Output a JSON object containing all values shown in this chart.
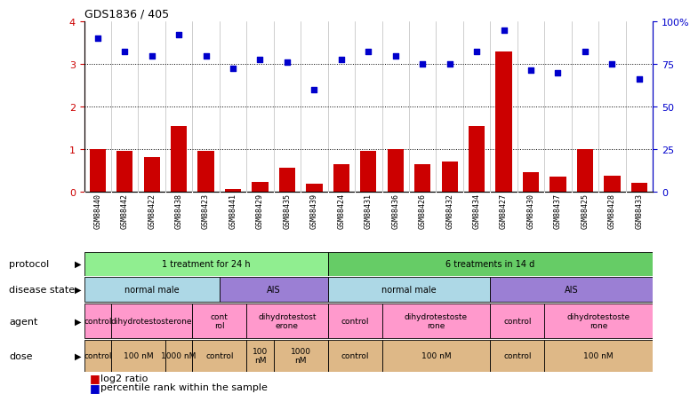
{
  "title": "GDS1836 / 405",
  "samples": [
    "GSM88440",
    "GSM88442",
    "GSM88422",
    "GSM88438",
    "GSM88423",
    "GSM88441",
    "GSM88429",
    "GSM88435",
    "GSM88439",
    "GSM88424",
    "GSM88431",
    "GSM88436",
    "GSM88426",
    "GSM88432",
    "GSM88434",
    "GSM88427",
    "GSM88430",
    "GSM88437",
    "GSM88425",
    "GSM88428",
    "GSM88433"
  ],
  "log2_ratio": [
    1.0,
    0.95,
    0.8,
    1.55,
    0.95,
    0.05,
    0.22,
    0.55,
    0.18,
    0.65,
    0.95,
    1.0,
    0.65,
    0.7,
    1.55,
    3.3,
    0.45,
    0.35,
    1.0,
    0.38,
    0.2
  ],
  "percentile": [
    3.6,
    3.3,
    3.2,
    3.7,
    3.2,
    2.9,
    3.1,
    3.05,
    2.4,
    3.1,
    3.3,
    3.2,
    3.0,
    3.0,
    3.3,
    3.8,
    2.85,
    2.8,
    3.3,
    3.0,
    2.65
  ],
  "protocol_groups": [
    {
      "label": "1 treatment for 24 h",
      "start": 0,
      "end": 8,
      "color": "#90EE90"
    },
    {
      "label": "6 treatments in 14 d",
      "start": 9,
      "end": 20,
      "color": "#66CC66"
    }
  ],
  "disease_groups": [
    {
      "label": "normal male",
      "start": 0,
      "end": 4,
      "color": "#ADD8E6"
    },
    {
      "label": "AIS",
      "start": 5,
      "end": 8,
      "color": "#9B7FD4"
    },
    {
      "label": "normal male",
      "start": 9,
      "end": 14,
      "color": "#ADD8E6"
    },
    {
      "label": "AIS",
      "start": 15,
      "end": 20,
      "color": "#9B7FD4"
    }
  ],
  "agent_groups": [
    {
      "label": "control",
      "start": 0,
      "end": 0,
      "color": "#FF99CC"
    },
    {
      "label": "dihydrotestosterone",
      "start": 1,
      "end": 3,
      "color": "#FF99CC"
    },
    {
      "label": "cont\nrol",
      "start": 4,
      "end": 5,
      "color": "#FF99CC"
    },
    {
      "label": "dihydrotestost\nerone",
      "start": 6,
      "end": 8,
      "color": "#FF99CC"
    },
    {
      "label": "control",
      "start": 9,
      "end": 10,
      "color": "#FF99CC"
    },
    {
      "label": "dihydrotestoste\nrone",
      "start": 11,
      "end": 14,
      "color": "#FF99CC"
    },
    {
      "label": "control",
      "start": 15,
      "end": 16,
      "color": "#FF99CC"
    },
    {
      "label": "dihydrotestoste\nrone",
      "start": 17,
      "end": 20,
      "color": "#FF99CC"
    }
  ],
  "dose_groups": [
    {
      "label": "control",
      "start": 0,
      "end": 0,
      "color": "#DEB887"
    },
    {
      "label": "100 nM",
      "start": 1,
      "end": 2,
      "color": "#DEB887"
    },
    {
      "label": "1000 nM",
      "start": 3,
      "end": 3,
      "color": "#DEB887"
    },
    {
      "label": "control",
      "start": 4,
      "end": 5,
      "color": "#DEB887"
    },
    {
      "label": "100\nnM",
      "start": 6,
      "end": 6,
      "color": "#DEB887"
    },
    {
      "label": "1000\nnM",
      "start": 7,
      "end": 8,
      "color": "#DEB887"
    },
    {
      "label": "control",
      "start": 9,
      "end": 10,
      "color": "#DEB887"
    },
    {
      "label": "100 nM",
      "start": 11,
      "end": 14,
      "color": "#DEB887"
    },
    {
      "label": "control",
      "start": 15,
      "end": 16,
      "color": "#DEB887"
    },
    {
      "label": "100 nM",
      "start": 17,
      "end": 20,
      "color": "#DEB887"
    }
  ],
  "bar_color": "#CC0000",
  "dot_color": "#0000CC",
  "ylabel_color": "#CC0000",
  "ylim_left": [
    0,
    4
  ],
  "ylim_right": [
    0,
    100
  ],
  "yticks_left": [
    0,
    1,
    2,
    3,
    4
  ],
  "yticks_right": [
    0,
    25,
    50,
    75,
    100
  ],
  "row_labels": [
    "protocol",
    "disease state",
    "agent",
    "dose"
  ],
  "row_label_fontsize": 8,
  "tick_fontsize": 8,
  "sample_fontsize": 6,
  "group_fontsize": 7,
  "legend_fontsize": 8
}
